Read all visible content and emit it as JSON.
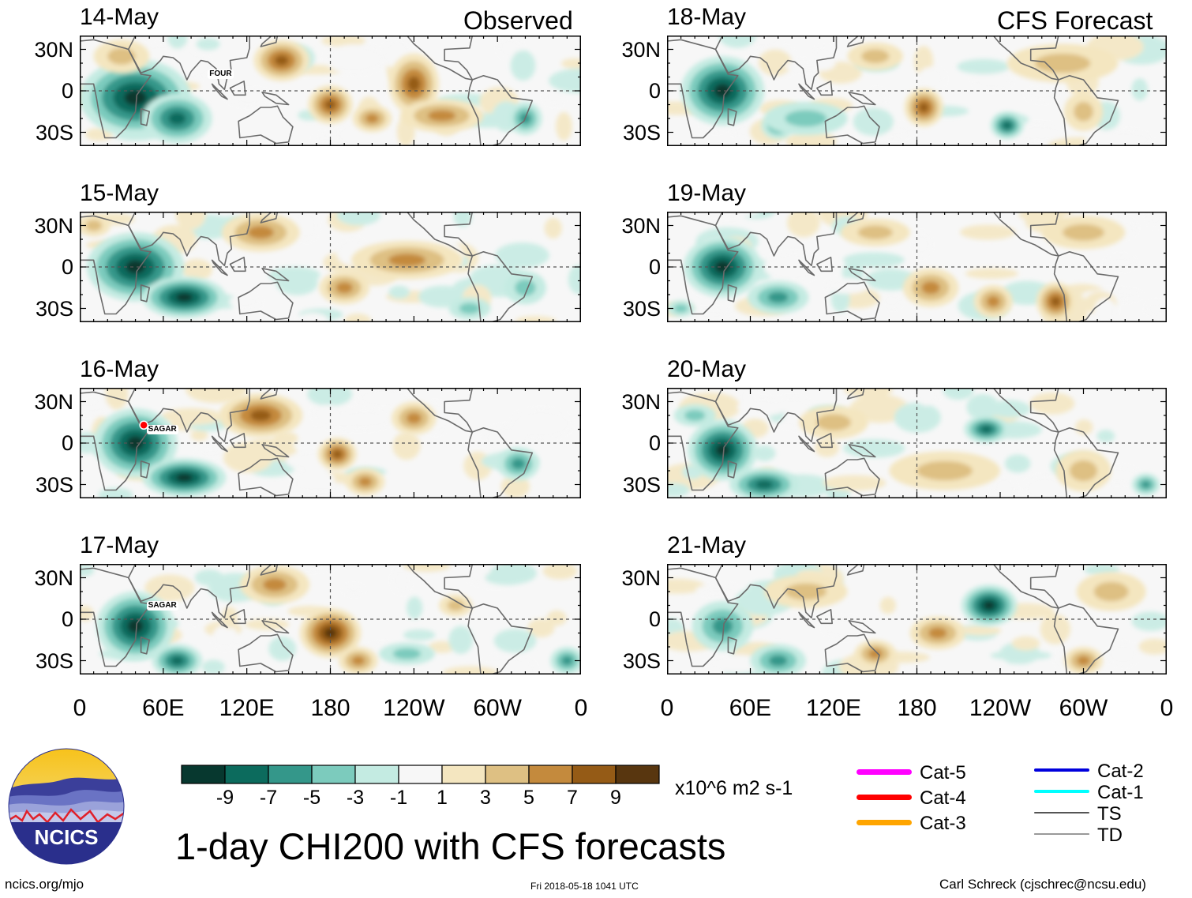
{
  "header": {
    "left_title": "Observed",
    "right_title": "CFS Forecast"
  },
  "panels": [
    {
      "date": "14-May",
      "kind": "observed",
      "storms": [
        {
          "name": "FOUR"
        }
      ]
    },
    {
      "date": "15-May",
      "kind": "observed",
      "storms": []
    },
    {
      "date": "16-May",
      "kind": "observed",
      "storms": [
        {
          "name": "SAGAR"
        }
      ]
    },
    {
      "date": "17-May",
      "kind": "observed",
      "storms": [
        {
          "name": "SAGAR"
        }
      ]
    },
    {
      "date": "18-May",
      "kind": "forecast",
      "storms": []
    },
    {
      "date": "19-May",
      "kind": "forecast",
      "storms": []
    },
    {
      "date": "20-May",
      "kind": "forecast",
      "storms": []
    },
    {
      "date": "21-May",
      "kind": "forecast",
      "storms": []
    }
  ],
  "axes": {
    "y_ticks": [
      "30N",
      "0",
      "30S"
    ],
    "x_ticks": [
      "0",
      "60E",
      "120E",
      "180",
      "120W",
      "60W",
      "0"
    ]
  },
  "colorbar": {
    "labels": [
      "-9",
      "-7",
      "-5",
      "-3",
      "-1",
      "1",
      "3",
      "5",
      "7",
      "9"
    ],
    "colors": [
      "#07382f",
      "#0c6b5d",
      "#34978a",
      "#7ccbbd",
      "#c4ebe2",
      "#f7f7f7",
      "#f4e6c0",
      "#dec083",
      "#c48a3d",
      "#955b16",
      "#58360f"
    ],
    "units": "x10^6 m2 s-1"
  },
  "legend": {
    "left": [
      {
        "label": "Cat-5",
        "color": "#ff00ff"
      },
      {
        "label": "Cat-4",
        "color": "#ff0000"
      },
      {
        "label": "Cat-3",
        "color": "#ffa500"
      }
    ],
    "right": [
      {
        "label": "Cat-2",
        "color": "#0000dd"
      },
      {
        "label": "Cat-1",
        "color": "#00ffff"
      },
      {
        "label": "TS",
        "color": "#555555"
      },
      {
        "label": "TD",
        "color": "#999999"
      }
    ]
  },
  "logo": {
    "text": "NCICS"
  },
  "footer": {
    "title": "1-day CHI200 with CFS forecasts",
    "url": "ncics.org/mjo",
    "timestamp": "Fri 2018-05-18 1041 UTC",
    "credit": "Carl Schreck (cjschrec@ncsu.edu)"
  }
}
